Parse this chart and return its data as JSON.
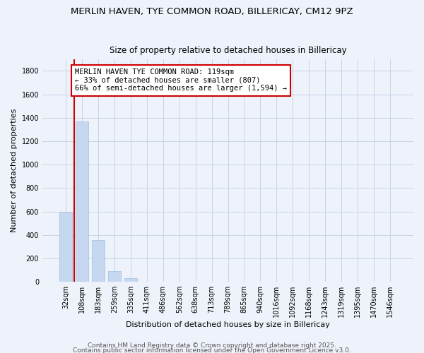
{
  "title1": "MERLIN HAVEN, TYE COMMON ROAD, BILLERICAY, CM12 9PZ",
  "title2": "Size of property relative to detached houses in Billericay",
  "xlabel": "Distribution of detached houses by size in Billericay",
  "ylabel": "Number of detached properties",
  "categories": [
    "32sqm",
    "108sqm",
    "183sqm",
    "259sqm",
    "335sqm",
    "411sqm",
    "486sqm",
    "562sqm",
    "638sqm",
    "713sqm",
    "789sqm",
    "865sqm",
    "940sqm",
    "1016sqm",
    "1092sqm",
    "1168sqm",
    "1243sqm",
    "1319sqm",
    "1395sqm",
    "1470sqm",
    "1546sqm"
  ],
  "values": [
    590,
    1370,
    355,
    90,
    30,
    0,
    0,
    0,
    0,
    0,
    0,
    0,
    0,
    0,
    0,
    0,
    0,
    0,
    0,
    0,
    0
  ],
  "bar_color": "#c5d8f0",
  "bar_edge_color": "#9dbfe0",
  "annotation_line1": "MERLIN HAVEN TYE COMMON ROAD: 119sqm",
  "annotation_line2": "← 33% of detached houses are smaller (807)",
  "annotation_line3": "66% of semi-detached houses are larger (1,594) →",
  "annotation_box_color": "#ffffff",
  "annotation_box_edge_color": "#cc0000",
  "ylim": [
    0,
    1900
  ],
  "yticks": [
    0,
    200,
    400,
    600,
    800,
    1000,
    1200,
    1400,
    1600,
    1800
  ],
  "footer1": "Contains HM Land Registry data © Crown copyright and database right 2025.",
  "footer2": "Contains public sector information licensed under the Open Government Licence v3.0.",
  "bg_color": "#eef2fa",
  "grid_color": "#c8d4e8",
  "title_fontsize": 9.5,
  "subtitle_fontsize": 8.5,
  "axis_label_fontsize": 8,
  "tick_fontsize": 7,
  "annotation_fontsize": 7.5,
  "footer_fontsize": 6.5,
  "red_line_x": 0.5
}
